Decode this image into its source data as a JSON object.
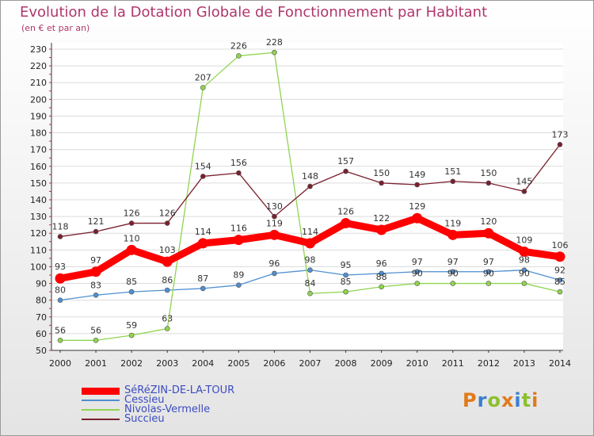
{
  "chart_data": {
    "type": "line",
    "title": "Evolution de la Dotation Globale de Fonctionnement par Habitant",
    "subtitle": "(en € et par an)",
    "x": [
      "2000",
      "2001",
      "2002",
      "2003",
      "2004",
      "2005",
      "2006",
      "2007",
      "2008",
      "2009",
      "2010",
      "2011",
      "2012",
      "2013",
      "2014"
    ],
    "ylim": [
      50,
      230
    ],
    "yticks": [
      50,
      60,
      70,
      80,
      90,
      100,
      110,
      120,
      130,
      140,
      150,
      160,
      170,
      180,
      190,
      200,
      210,
      220,
      230
    ],
    "series": [
      {
        "name": "SéRéZIN-DE-LA-TOUR",
        "color": "#ff0000",
        "values": [
          93,
          97,
          110,
          103,
          114,
          116,
          119,
          114,
          126,
          122,
          129,
          119,
          120,
          109,
          106
        ]
      },
      {
        "name": "Cessieu",
        "color": "#4f8fd0",
        "values": [
          80,
          83,
          85,
          86,
          87,
          89,
          96,
          98,
          95,
          96,
          97,
          97,
          97,
          98,
          92
        ]
      },
      {
        "name": "Nivolas-Vermelle",
        "color": "#8fd44f",
        "values": [
          56,
          56,
          59,
          63,
          207,
          226,
          228,
          84,
          85,
          88,
          90,
          90,
          90,
          90,
          85
        ]
      },
      {
        "name": "Succieu",
        "color": "#7a1f2e",
        "values": [
          118,
          121,
          126,
          126,
          154,
          156,
          130,
          148,
          157,
          150,
          149,
          151,
          150,
          145,
          173
        ]
      }
    ]
  },
  "logo": {
    "text": "Proxiti"
  }
}
